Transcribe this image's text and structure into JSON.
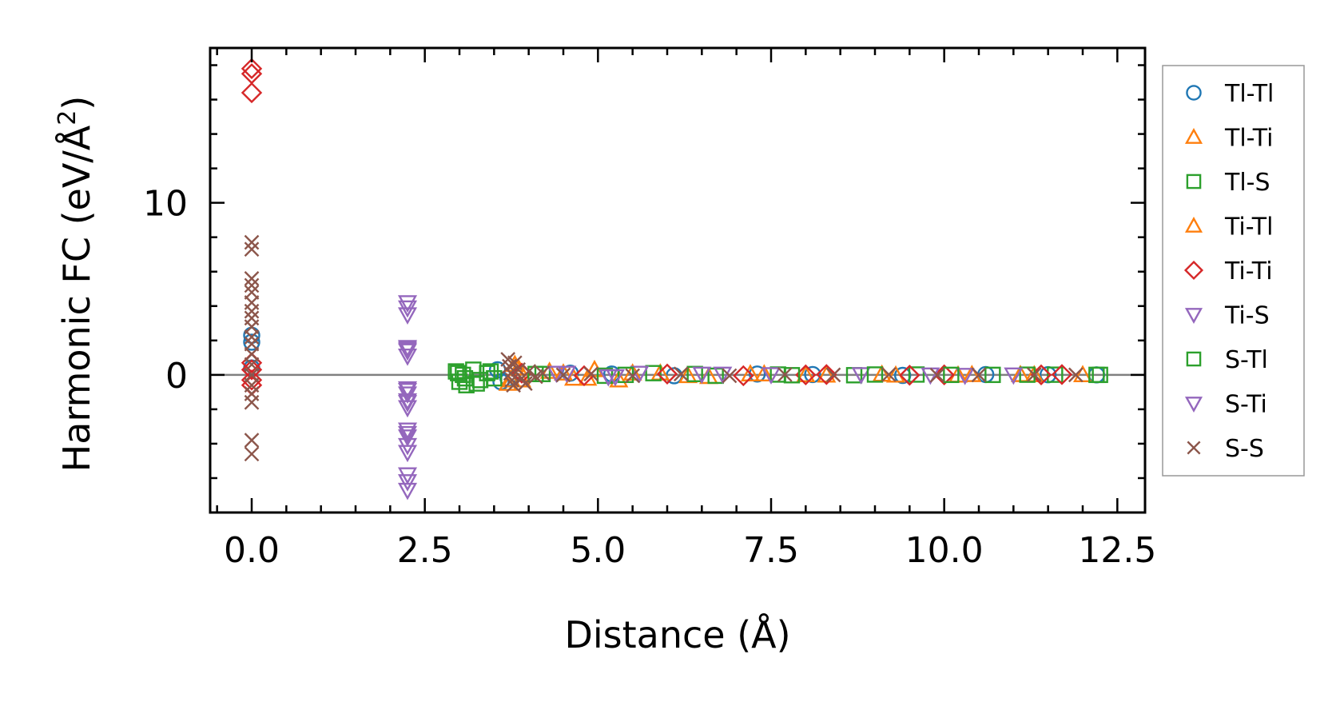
{
  "chart_data": {
    "type": "scatter",
    "title": "",
    "xlabel": "Distance (Å)",
    "ylabel_main": "Harmonic FC (eV/Å",
    "ylabel_sup": "2",
    "ylabel_close": ")",
    "xlim": [
      -0.6,
      12.9
    ],
    "ylim": [
      -8,
      19
    ],
    "xticks": [
      0.0,
      2.5,
      5.0,
      7.5,
      10.0,
      12.5
    ],
    "xtick_labels": [
      "0.0",
      "2.5",
      "5.0",
      "7.5",
      "10.0",
      "12.5"
    ],
    "yticks": [
      0,
      10
    ],
    "ytick_labels": [
      "0",
      "10"
    ],
    "hline_y": 0,
    "grid": false,
    "legend_position": "outside right",
    "colors": {
      "blue": "#1f77b4",
      "orange": "#ff7f0e",
      "green": "#2ca02c",
      "red": "#d62728",
      "purple": "#9467bd",
      "brown": "#8c564b",
      "zero_line": "#808080"
    },
    "series": [
      {
        "name": "Tl-Tl",
        "marker": "circle",
        "color": "#1f77b4",
        "points": [
          [
            0,
            2.3
          ],
          [
            0,
            1.9
          ],
          [
            0,
            0.4
          ],
          [
            3.55,
            0.3
          ],
          [
            3.6,
            -0.4
          ],
          [
            3.7,
            -0.2
          ],
          [
            4.6,
            0.1
          ],
          [
            5.2,
            0.05
          ],
          [
            6.1,
            -0.05
          ],
          [
            7.3,
            0.05
          ],
          [
            8.1,
            0.02
          ],
          [
            9.4,
            -0.03
          ],
          [
            10.6,
            0.02
          ],
          [
            11.5,
            0.01
          ],
          [
            12.2,
            0.0
          ]
        ]
      },
      {
        "name": "Tl-Ti",
        "marker": "triangle-up",
        "color": "#ff7f0e",
        "points": [
          [
            3.7,
            -0.5
          ],
          [
            3.8,
            0.6
          ],
          [
            3.9,
            -0.3
          ],
          [
            4.3,
            0.2
          ],
          [
            4.65,
            -0.2
          ],
          [
            4.95,
            0.3
          ],
          [
            5.3,
            -0.3
          ],
          [
            5.9,
            0.1
          ],
          [
            6.6,
            -0.1
          ],
          [
            7.4,
            0.05
          ],
          [
            8.3,
            -0.02
          ],
          [
            9.1,
            0.03
          ],
          [
            10.2,
            -0.02
          ],
          [
            11.1,
            0.01
          ],
          [
            12.0,
            0.0
          ]
        ]
      },
      {
        "name": "Tl-S",
        "marker": "square",
        "color": "#2ca02c",
        "points": [
          [
            2.95,
            0.2
          ],
          [
            3.0,
            -0.4
          ],
          [
            3.05,
            0.0
          ],
          [
            3.1,
            -0.6
          ],
          [
            3.2,
            0.3
          ],
          [
            3.3,
            -0.3
          ],
          [
            3.4,
            0.1
          ],
          [
            3.5,
            -0.2
          ],
          [
            4.2,
            0.05
          ],
          [
            5.1,
            -0.05
          ],
          [
            5.8,
            0.1
          ],
          [
            6.7,
            -0.05
          ],
          [
            7.6,
            0.02
          ],
          [
            8.7,
            -0.02
          ],
          [
            9.6,
            0.02
          ],
          [
            10.7,
            0.0
          ],
          [
            11.6,
            0.01
          ],
          [
            12.25,
            0.0
          ]
        ]
      },
      {
        "name": "Ti-Tl",
        "marker": "triangle-up",
        "color": "#ff7f0e",
        "points": [
          [
            3.75,
            -0.3
          ],
          [
            3.85,
            0.4
          ],
          [
            4.5,
            0.1
          ],
          [
            4.85,
            -0.2
          ],
          [
            5.5,
            0.1
          ],
          [
            6.3,
            -0.05
          ],
          [
            7.2,
            0.05
          ],
          [
            8.0,
            0.0
          ],
          [
            9.3,
            -0.02
          ],
          [
            10.4,
            0.01
          ],
          [
            11.3,
            0.0
          ]
        ]
      },
      {
        "name": "Ti-Ti",
        "marker": "diamond",
        "color": "#d62728",
        "points": [
          [
            0,
            17.8
          ],
          [
            0,
            17.5
          ],
          [
            0,
            16.4
          ],
          [
            0,
            0.7
          ],
          [
            0,
            0.3
          ],
          [
            0,
            -0.3
          ],
          [
            0,
            -0.6
          ],
          [
            3.9,
            0.1
          ],
          [
            4.8,
            -0.05
          ],
          [
            6.0,
            0.05
          ],
          [
            7.1,
            -0.05
          ],
          [
            8.0,
            0.0
          ],
          [
            8.3,
            0.02
          ],
          [
            9.5,
            -0.02
          ],
          [
            10.0,
            0.0
          ],
          [
            11.4,
            0.0
          ],
          [
            11.7,
            0.02
          ]
        ]
      },
      {
        "name": "Ti-S",
        "marker": "triangle-down",
        "color": "#9467bd",
        "points": [
          [
            2.25,
            4.2
          ],
          [
            2.25,
            3.9
          ],
          [
            2.25,
            3.5
          ],
          [
            2.25,
            1.6
          ],
          [
            2.25,
            1.4
          ],
          [
            2.25,
            1.1
          ],
          [
            2.25,
            -0.8
          ],
          [
            2.25,
            -1.1
          ],
          [
            2.25,
            -1.5
          ],
          [
            2.25,
            -1.9
          ],
          [
            2.25,
            -3.2
          ],
          [
            2.25,
            -3.6
          ],
          [
            2.25,
            -4.1
          ],
          [
            2.25,
            -4.5
          ],
          [
            2.25,
            -5.8
          ],
          [
            2.25,
            -6.2
          ],
          [
            2.25,
            -6.7
          ],
          [
            4.4,
            0.1
          ],
          [
            5.15,
            -0.1
          ],
          [
            5.6,
            0.1
          ],
          [
            6.8,
            0.05
          ],
          [
            8.8,
            0.02
          ],
          [
            10.3,
            -0.02
          ]
        ]
      },
      {
        "name": "S-Tl",
        "marker": "square",
        "color": "#2ca02c",
        "points": [
          [
            2.98,
            0.1
          ],
          [
            3.08,
            -0.2
          ],
          [
            3.25,
            -0.5
          ],
          [
            3.45,
            0.2
          ],
          [
            4.1,
            0.05
          ],
          [
            5.4,
            0.0
          ],
          [
            6.4,
            0.05
          ],
          [
            7.8,
            -0.02
          ],
          [
            9.0,
            0.02
          ],
          [
            10.1,
            0.0
          ],
          [
            11.2,
            0.01
          ],
          [
            12.2,
            0.0
          ]
        ]
      },
      {
        "name": "S-Ti",
        "marker": "triangle-down",
        "color": "#9467bd",
        "points": [
          [
            2.25,
            1.5
          ],
          [
            2.25,
            -0.9
          ],
          [
            2.25,
            -1.6
          ],
          [
            2.25,
            -3.4
          ],
          [
            4.55,
            0.1
          ],
          [
            5.25,
            -0.1
          ],
          [
            6.5,
            0.05
          ],
          [
            7.5,
            0.02
          ],
          [
            9.8,
            0.0
          ],
          [
            11.0,
            0.0
          ]
        ]
      },
      {
        "name": "S-S",
        "marker": "x",
        "color": "#8c564b",
        "points": [
          [
            0,
            7.7
          ],
          [
            0,
            7.3
          ],
          [
            0,
            5.6
          ],
          [
            0,
            5.2
          ],
          [
            0,
            4.8
          ],
          [
            0,
            4.2
          ],
          [
            0,
            3.7
          ],
          [
            0,
            3.3
          ],
          [
            0,
            2.8
          ],
          [
            0,
            2.2
          ],
          [
            0,
            1.8
          ],
          [
            0,
            1.2
          ],
          [
            0,
            0.6
          ],
          [
            0,
            0.0
          ],
          [
            0,
            -0.6
          ],
          [
            0,
            -1.1
          ],
          [
            0,
            -1.6
          ],
          [
            0,
            -3.8
          ],
          [
            0,
            -4.6
          ],
          [
            3.7,
            0.9
          ],
          [
            3.72,
            0.5
          ],
          [
            3.74,
            0.1
          ],
          [
            3.76,
            -0.3
          ],
          [
            3.78,
            -0.6
          ],
          [
            3.8,
            0.7
          ],
          [
            3.85,
            0.3
          ],
          [
            3.9,
            -0.2
          ],
          [
            3.95,
            -0.5
          ],
          [
            4.0,
            0.2
          ],
          [
            4.1,
            -0.1
          ],
          [
            4.2,
            0.1
          ],
          [
            4.5,
            0.0
          ],
          [
            4.9,
            0.05
          ],
          [
            5.5,
            -0.05
          ],
          [
            6.2,
            0.05
          ],
          [
            6.9,
            -0.05
          ],
          [
            7.7,
            0.02
          ],
          [
            8.4,
            0.0
          ],
          [
            9.2,
            0.02
          ],
          [
            9.9,
            -0.02
          ],
          [
            10.5,
            0.0
          ],
          [
            11.3,
            0.01
          ],
          [
            11.9,
            0.0
          ]
        ]
      }
    ]
  }
}
